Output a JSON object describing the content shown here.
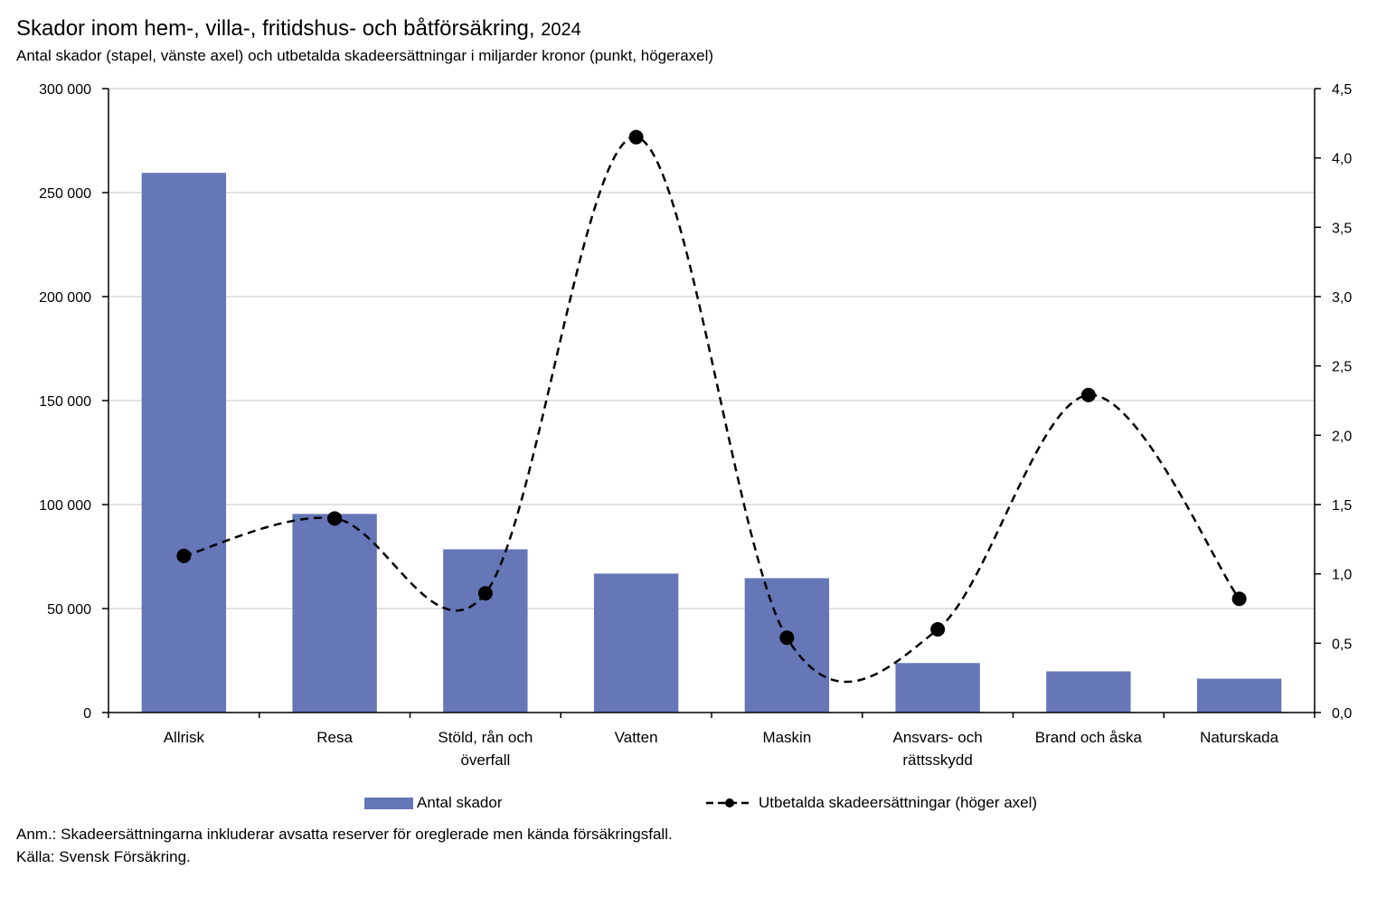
{
  "title": {
    "main": "Skador inom hem-, villa-, fritidshus- och båtförsäkring,",
    "year": "2024"
  },
  "subtitle": "Antal skador (stapel, vänste axel) och utbetalda skadeersättningar i miljarder kronor (punkt, högeraxel)",
  "colors": {
    "bar": "#6677b8",
    "line": "#000000",
    "grid": "#d9d9d9"
  },
  "chart_data": {
    "type": "bar",
    "categories": [
      [
        "Allrisk"
      ],
      [
        "Resa"
      ],
      [
        "Stöld, rån och",
        "överfall"
      ],
      [
        "Vatten"
      ],
      [
        "Maskin"
      ],
      [
        "Ansvars- och",
        "rättsskydd"
      ],
      [
        "Brand och åska"
      ],
      [
        "Naturskada"
      ]
    ],
    "series": [
      {
        "name": "Antal skador",
        "type": "bar",
        "axis": "left",
        "values": [
          259500,
          95500,
          78500,
          66800,
          64600,
          23800,
          19800,
          16300
        ]
      },
      {
        "name": "Utbetalda skadeersättningar (höger axel)",
        "type": "line",
        "axis": "right",
        "style": "dashed-smooth-with-markers",
        "values": [
          1.13,
          1.4,
          0.86,
          4.15,
          0.54,
          0.6,
          2.29,
          0.82
        ]
      }
    ],
    "y_left": {
      "ylim": [
        0,
        300000
      ],
      "ticks": [
        0,
        50000,
        100000,
        150000,
        200000,
        250000,
        300000
      ],
      "tick_labels": [
        "0",
        "50 000",
        "100 000",
        "150 000",
        "200 000",
        "250 000",
        "300 000"
      ]
    },
    "y_right": {
      "ylim": [
        0,
        4.5
      ],
      "ticks": [
        0,
        0.5,
        1.0,
        1.5,
        2.0,
        2.5,
        3.0,
        3.5,
        4.0,
        4.5
      ],
      "tick_labels": [
        "0,0",
        "0,5",
        "1,0",
        "1,5",
        "2,0",
        "2,5",
        "3,0",
        "3,5",
        "4,0",
        "4,5"
      ]
    },
    "grid": true,
    "legend_placement": "bottom"
  },
  "legend": {
    "bar_label": "Antal skador",
    "line_label": "Utbetalda skadeersättningar (höger axel)"
  },
  "notes": {
    "anm": "Anm.: Skadeersättningarna inkluderar avsatta reserver för oreglerade men kända försäkringsfall.",
    "source": "Källa: Svensk Försäkring."
  }
}
